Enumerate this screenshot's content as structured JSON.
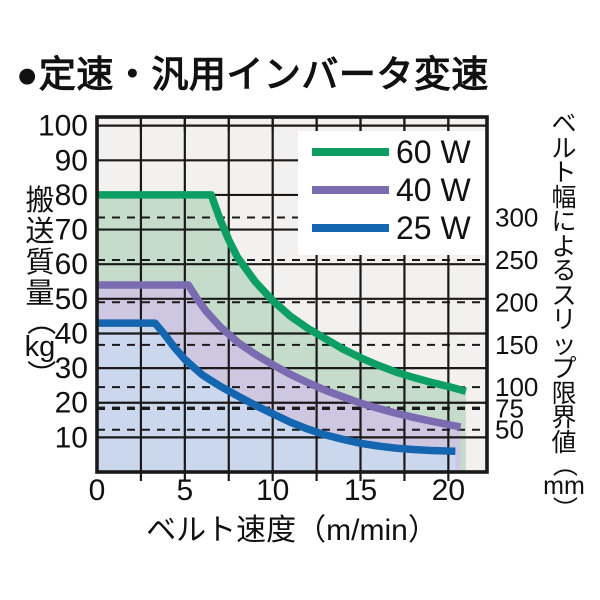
{
  "title": "●定速・汎用インバータ変速",
  "chart_data": {
    "type": "line",
    "xlabel": "ベルト速度（m/min）",
    "ylabel_left": "搬送質量（kg）",
    "ylabel_right": "ベルト幅によるスリップ限界値（mm）",
    "xlim": [
      0,
      22.2
    ],
    "ylim_left": [
      0,
      102.5
    ],
    "x_tick_labels": [
      0,
      5,
      10,
      15,
      20
    ],
    "x_grid_step": 2.5,
    "y_ticks_left": [
      10,
      20,
      30,
      40,
      50,
      60,
      70,
      80,
      90,
      100
    ],
    "right_axis_entries": [
      {
        "label": "300",
        "kg": 73.5,
        "bold": false
      },
      {
        "label": "250",
        "kg": 61.2,
        "bold": false
      },
      {
        "label": "200",
        "kg": 49.0,
        "bold": false
      },
      {
        "label": "150",
        "kg": 36.7,
        "bold": false
      },
      {
        "label": "100",
        "kg": 24.5,
        "bold": false
      },
      {
        "label": "75",
        "kg": 18.4,
        "bold": true
      },
      {
        "label": "50",
        "kg": 12.2,
        "bold": false
      }
    ],
    "grid": true,
    "legend_position": "top-right",
    "series": [
      {
        "name": "60w-curve",
        "label": "60 W",
        "color": "#0C9E63",
        "fill": "#C6DCCB",
        "points": [
          [
            0,
            80
          ],
          [
            6.5,
            80
          ],
          [
            7,
            73
          ],
          [
            7.5,
            67
          ],
          [
            8,
            62
          ],
          [
            9,
            55
          ],
          [
            10,
            49.5
          ],
          [
            11,
            45
          ],
          [
            12,
            41.5
          ],
          [
            13,
            38.5
          ],
          [
            14,
            35.5
          ],
          [
            15,
            33
          ],
          [
            16,
            30.8
          ],
          [
            17,
            28.9
          ],
          [
            18,
            27.3
          ],
          [
            19,
            25.9
          ],
          [
            20,
            24.7
          ],
          [
            21,
            23.3
          ]
        ]
      },
      {
        "name": "40w-curve",
        "label": "40 W",
        "color": "#7B6BB0",
        "fill": "#CEC7E1",
        "points": [
          [
            0,
            54
          ],
          [
            5.2,
            54
          ],
          [
            5.7,
            50
          ],
          [
            6.2,
            46.5
          ],
          [
            7,
            42
          ],
          [
            8,
            37.5
          ],
          [
            9,
            34
          ],
          [
            10,
            31
          ],
          [
            11,
            28.2
          ],
          [
            12,
            25.8
          ],
          [
            13,
            23.6
          ],
          [
            14,
            21.7
          ],
          [
            15,
            19.9
          ],
          [
            16,
            18.4
          ],
          [
            17,
            17
          ],
          [
            18,
            15.8
          ],
          [
            19,
            14.7
          ],
          [
            20,
            13.7
          ],
          [
            20.7,
            13
          ]
        ]
      },
      {
        "name": "25w-curve",
        "label": "25 W",
        "color": "#1566B0",
        "fill": "#CBD7EC",
        "points": [
          [
            0,
            43
          ],
          [
            3.3,
            43
          ],
          [
            3.8,
            40
          ],
          [
            4.4,
            36
          ],
          [
            5,
            32.5
          ],
          [
            6,
            28
          ],
          [
            7,
            24.8
          ],
          [
            8,
            22
          ],
          [
            9,
            19.3
          ],
          [
            10,
            16.8
          ],
          [
            11,
            14.4
          ],
          [
            12,
            12.4
          ],
          [
            13,
            10.7
          ],
          [
            14,
            9.4
          ],
          [
            15,
            8.3
          ],
          [
            16,
            7.5
          ],
          [
            17,
            6.9
          ],
          [
            18,
            6.5
          ],
          [
            19,
            6.2
          ],
          [
            20.4,
            6
          ]
        ]
      }
    ],
    "colors": {
      "plot_bg": "#F2F1EF",
      "grid": "#1A1A1A",
      "border": "#1A1A1A",
      "legend_bg": "#FFFFFF",
      "text": "#111111"
    }
  }
}
